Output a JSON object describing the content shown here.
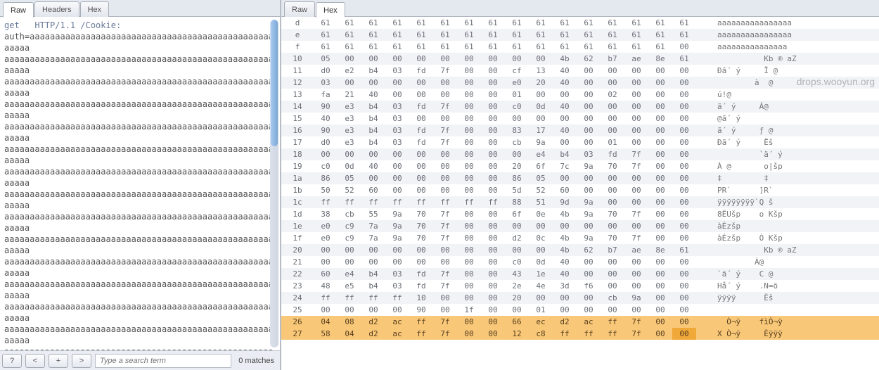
{
  "watermark": "drops.wooyun.org",
  "left": {
    "tabs": [
      {
        "label": "Raw",
        "active": true
      },
      {
        "label": "Headers",
        "active": false
      },
      {
        "label": "Hex",
        "active": false
      }
    ],
    "request_first": "get   HTTP/1.1 /Cookie:",
    "request_prefix": "auth=",
    "a_lines": 28
  },
  "footer": {
    "help": "?",
    "prev": "<",
    "next": "+",
    "more": ">",
    "placeholder": "Type a search term",
    "matches": "0 matches"
  },
  "right": {
    "tabs": [
      {
        "label": "Raw",
        "active": false
      },
      {
        "label": "Hex",
        "active": true
      }
    ],
    "rows": [
      {
        "off": "d",
        "b": [
          "61",
          "61",
          "61",
          "61",
          "61",
          "61",
          "61",
          "61",
          "61",
          "61",
          "61",
          "61",
          "61",
          "61",
          "61",
          "61"
        ],
        "a": "aaaaaaaaaaaaaaaa"
      },
      {
        "off": "e",
        "b": [
          "61",
          "61",
          "61",
          "61",
          "61",
          "61",
          "61",
          "61",
          "61",
          "61",
          "61",
          "61",
          "61",
          "61",
          "61",
          "61"
        ],
        "a": "aaaaaaaaaaaaaaaa"
      },
      {
        "off": "f",
        "b": [
          "61",
          "61",
          "61",
          "61",
          "61",
          "61",
          "61",
          "61",
          "61",
          "61",
          "61",
          "61",
          "61",
          "61",
          "61",
          "00"
        ],
        "a": "aaaaaaaaaaaaaaa"
      },
      {
        "off": "10",
        "b": [
          "05",
          "00",
          "00",
          "00",
          "00",
          "00",
          "00",
          "00",
          "00",
          "00",
          "4b",
          "62",
          "b7",
          "ae",
          "8e",
          "61",
          "5a"
        ],
        "a": "          Kb ® aZ"
      },
      {
        "off": "11",
        "b": [
          "d0",
          "e2",
          "b4",
          "03",
          "fd",
          "7f",
          "00",
          "00",
          "cf",
          "13",
          "40",
          "00",
          "00",
          "00",
          "00",
          "00"
        ],
        "a": "Ðâ´ ý     Ï @"
      },
      {
        "off": "12",
        "b": [
          "03",
          "00",
          "00",
          "00",
          "00",
          "00",
          "00",
          "00",
          "e0",
          "20",
          "40",
          "00",
          "00",
          "00",
          "00",
          "00"
        ],
        "a": "        à  @"
      },
      {
        "off": "13",
        "b": [
          "fa",
          "21",
          "40",
          "00",
          "00",
          "00",
          "00",
          "00",
          "01",
          "00",
          "00",
          "00",
          "02",
          "00",
          "00",
          "00"
        ],
        "a": "ú!@"
      },
      {
        "off": "14",
        "b": [
          "90",
          "e3",
          "b4",
          "03",
          "fd",
          "7f",
          "00",
          "00",
          "c0",
          "0d",
          "40",
          "00",
          "00",
          "00",
          "00",
          "00"
        ],
        "a": "ã´ ý     À@"
      },
      {
        "off": "15",
        "b": [
          "40",
          "e3",
          "b4",
          "03",
          "00",
          "00",
          "00",
          "00",
          "00",
          "00",
          "00",
          "00",
          "00",
          "00",
          "00",
          "00"
        ],
        "a": "@ã´ ý"
      },
      {
        "off": "16",
        "b": [
          "90",
          "e3",
          "b4",
          "03",
          "fd",
          "7f",
          "00",
          "00",
          "83",
          "17",
          "40",
          "00",
          "00",
          "00",
          "00",
          "00"
        ],
        "a": "ã´ ý     ƒ @"
      },
      {
        "off": "17",
        "b": [
          "d0",
          "e3",
          "b4",
          "03",
          "fd",
          "7f",
          "00",
          "00",
          "cb",
          "9a",
          "00",
          "00",
          "01",
          "00",
          "00",
          "00"
        ],
        "a": "Ðã´ ý     Ëš"
      },
      {
        "off": "18",
        "b": [
          "00",
          "00",
          "00",
          "00",
          "00",
          "00",
          "00",
          "00",
          "00",
          "e4",
          "b4",
          "03",
          "fd",
          "7f",
          "00",
          "00"
        ],
        "a": "         `ä´ ý"
      },
      {
        "off": "19",
        "b": [
          "c0",
          "0d",
          "40",
          "00",
          "00",
          "00",
          "00",
          "00",
          "20",
          "6f",
          "7c",
          "9a",
          "70",
          "7f",
          "00",
          "00"
        ],
        "a": "À @       o|šp"
      },
      {
        "off": "1a",
        "b": [
          "86",
          "05",
          "00",
          "00",
          "00",
          "00",
          "00",
          "00",
          "86",
          "05",
          "00",
          "00",
          "00",
          "00",
          "00",
          "00"
        ],
        "a": "‡         ‡"
      },
      {
        "off": "1b",
        "b": [
          "50",
          "52",
          "60",
          "00",
          "00",
          "00",
          "00",
          "00",
          "5d",
          "52",
          "60",
          "00",
          "00",
          "00",
          "00",
          "00"
        ],
        "a": "PR`      ]R`"
      },
      {
        "off": "1c",
        "b": [
          "ff",
          "ff",
          "ff",
          "ff",
          "ff",
          "ff",
          "ff",
          "ff",
          "88",
          "51",
          "9d",
          "9a",
          "00",
          "00",
          "00",
          "00"
        ],
        "a": "ÿÿÿÿÿÿÿÿ`Q š"
      },
      {
        "off": "1d",
        "b": [
          "38",
          "cb",
          "55",
          "9a",
          "70",
          "7f",
          "00",
          "00",
          "6f",
          "0e",
          "4b",
          "9a",
          "70",
          "7f",
          "00",
          "00"
        ],
        "a": "8ËUšp    o Kšp"
      },
      {
        "off": "1e",
        "b": [
          "e0",
          "c9",
          "7a",
          "9a",
          "70",
          "7f",
          "00",
          "00",
          "00",
          "00",
          "00",
          "00",
          "00",
          "00",
          "00",
          "00"
        ],
        "a": "àÉzšp"
      },
      {
        "off": "1f",
        "b": [
          "e0",
          "c9",
          "7a",
          "9a",
          "70",
          "7f",
          "00",
          "00",
          "d2",
          "0c",
          "4b",
          "9a",
          "70",
          "7f",
          "00",
          "00"
        ],
        "a": "àÉzšp    Ò Kšp"
      },
      {
        "off": "20",
        "b": [
          "00",
          "00",
          "00",
          "00",
          "00",
          "00",
          "00",
          "00",
          "00",
          "00",
          "4b",
          "62",
          "b7",
          "ae",
          "8e",
          "61",
          "5a"
        ],
        "a": "          Kb ® aZ"
      },
      {
        "off": "21",
        "b": [
          "00",
          "00",
          "00",
          "00",
          "00",
          "00",
          "00",
          "00",
          "c0",
          "0d",
          "40",
          "00",
          "00",
          "00",
          "00",
          "00"
        ],
        "a": "        À@"
      },
      {
        "off": "22",
        "b": [
          "60",
          "e4",
          "b4",
          "03",
          "fd",
          "7f",
          "00",
          "00",
          "43",
          "1e",
          "40",
          "00",
          "00",
          "00",
          "00",
          "00"
        ],
        "a": "`ä´ ý    C @"
      },
      {
        "off": "23",
        "b": [
          "48",
          "e5",
          "b4",
          "03",
          "fd",
          "7f",
          "00",
          "00",
          "2e",
          "4e",
          "3d",
          "f6",
          "00",
          "00",
          "00",
          "00"
        ],
        "a": "Hå´ ý    .N=ö"
      },
      {
        "off": "24",
        "b": [
          "ff",
          "ff",
          "ff",
          "ff",
          "10",
          "00",
          "00",
          "00",
          "20",
          "00",
          "00",
          "00",
          "cb",
          "9a",
          "00",
          "00"
        ],
        "a": "ÿÿÿÿ      Ëš"
      },
      {
        "off": "25",
        "b": [
          "00",
          "00",
          "00",
          "00",
          "90",
          "00",
          "1f",
          "00",
          "00",
          "01",
          "00",
          "00",
          "00",
          "00",
          "00",
          "00"
        ],
        "a": ""
      },
      {
        "off": "26",
        "b": [
          "04",
          "08",
          "d2",
          "ac",
          "ff",
          "7f",
          "00",
          "00",
          "66",
          "ec",
          "d2",
          "ac",
          "ff",
          "7f",
          "00",
          "00"
        ],
        "a": "  Ò¬ÿ    fìÒ¬ÿ",
        "hl": true
      },
      {
        "off": "27",
        "b": [
          "58",
          "04",
          "d2",
          "ac",
          "ff",
          "7f",
          "00",
          "00",
          "12",
          "c8",
          "ff",
          "ff",
          "ff",
          "7f",
          "00",
          "00"
        ],
        "a": "X Ò¬ÿ     Èÿÿÿ",
        "hl": true,
        "hlcell": 15
      }
    ]
  }
}
